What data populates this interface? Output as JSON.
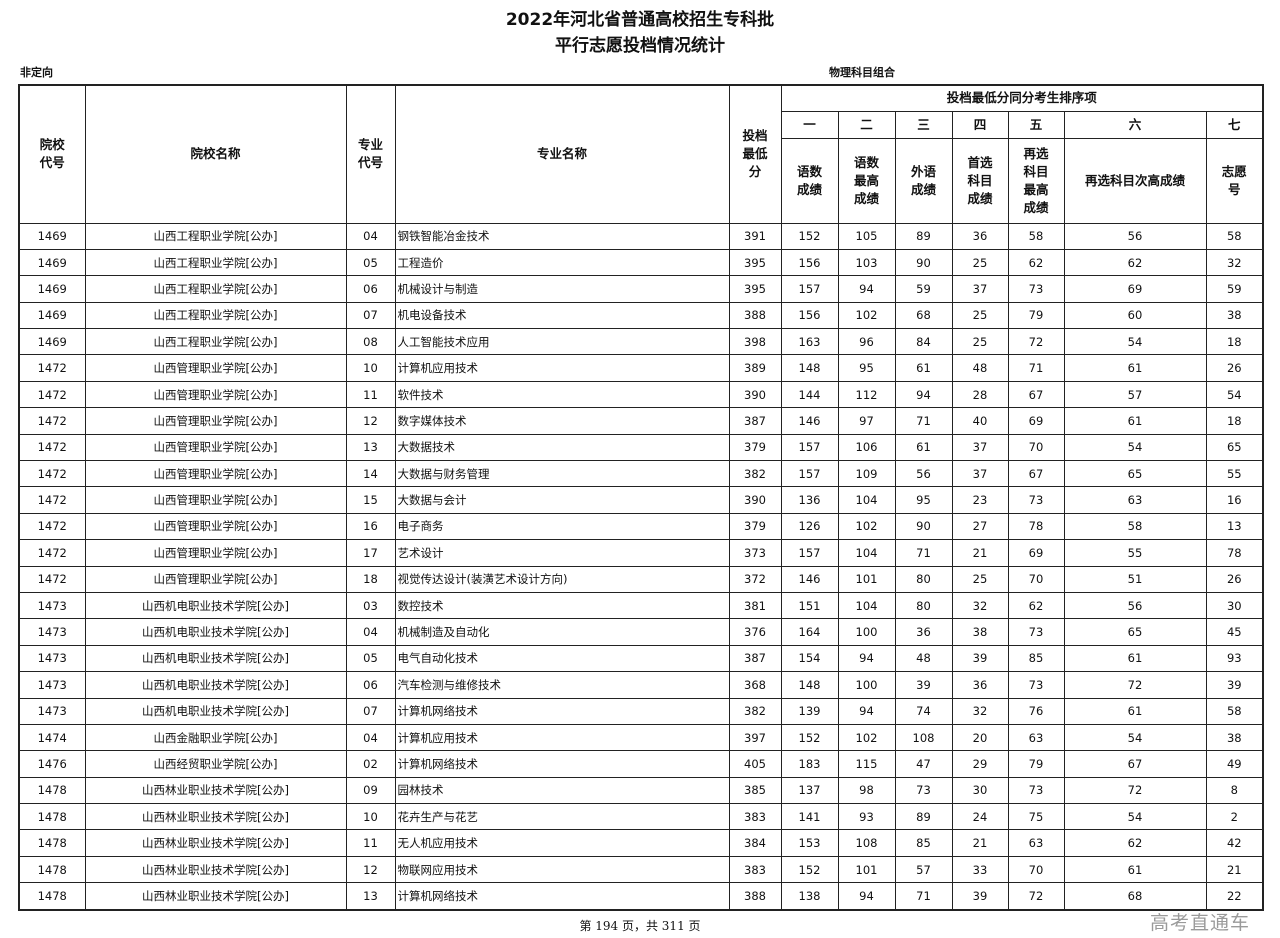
{
  "title_line1": "2022年河北省普通高校招生专科批",
  "title_line2": "平行志愿投档情况统计",
  "category": "非定向",
  "subject_group": "物理科目组合",
  "headers": {
    "school_code": "院校代号",
    "school_name": "院校名称",
    "major_code": "专业代号",
    "major_name": "专业名称",
    "min_score": "投档最低分",
    "tiebreak": "投档最低分同分考生排序项",
    "orders": [
      "一",
      "二",
      "三",
      "四",
      "五",
      "六",
      "七"
    ],
    "items": [
      "语数成绩",
      "语数最高成绩",
      "外语成绩",
      "首选科目成绩",
      "再选科目最高成绩",
      "再选科目次高成绩",
      "志愿号"
    ]
  },
  "rows": [
    [
      "1469",
      "山西工程职业学院[公办]",
      "04",
      "钢铁智能冶金技术",
      "391",
      "152",
      "105",
      "89",
      "36",
      "58",
      "56",
      "58"
    ],
    [
      "1469",
      "山西工程职业学院[公办]",
      "05",
      "工程造价",
      "395",
      "156",
      "103",
      "90",
      "25",
      "62",
      "62",
      "32"
    ],
    [
      "1469",
      "山西工程职业学院[公办]",
      "06",
      "机械设计与制造",
      "395",
      "157",
      "94",
      "59",
      "37",
      "73",
      "69",
      "59"
    ],
    [
      "1469",
      "山西工程职业学院[公办]",
      "07",
      "机电设备技术",
      "388",
      "156",
      "102",
      "68",
      "25",
      "79",
      "60",
      "38"
    ],
    [
      "1469",
      "山西工程职业学院[公办]",
      "08",
      "人工智能技术应用",
      "398",
      "163",
      "96",
      "84",
      "25",
      "72",
      "54",
      "18"
    ],
    [
      "1472",
      "山西管理职业学院[公办]",
      "10",
      "计算机应用技术",
      "389",
      "148",
      "95",
      "61",
      "48",
      "71",
      "61",
      "26"
    ],
    [
      "1472",
      "山西管理职业学院[公办]",
      "11",
      "软件技术",
      "390",
      "144",
      "112",
      "94",
      "28",
      "67",
      "57",
      "54"
    ],
    [
      "1472",
      "山西管理职业学院[公办]",
      "12",
      "数字媒体技术",
      "387",
      "146",
      "97",
      "71",
      "40",
      "69",
      "61",
      "18"
    ],
    [
      "1472",
      "山西管理职业学院[公办]",
      "13",
      "大数据技术",
      "379",
      "157",
      "106",
      "61",
      "37",
      "70",
      "54",
      "65"
    ],
    [
      "1472",
      "山西管理职业学院[公办]",
      "14",
      "大数据与财务管理",
      "382",
      "157",
      "109",
      "56",
      "37",
      "67",
      "65",
      "55"
    ],
    [
      "1472",
      "山西管理职业学院[公办]",
      "15",
      "大数据与会计",
      "390",
      "136",
      "104",
      "95",
      "23",
      "73",
      "63",
      "16"
    ],
    [
      "1472",
      "山西管理职业学院[公办]",
      "16",
      "电子商务",
      "379",
      "126",
      "102",
      "90",
      "27",
      "78",
      "58",
      "13"
    ],
    [
      "1472",
      "山西管理职业学院[公办]",
      "17",
      "艺术设计",
      "373",
      "157",
      "104",
      "71",
      "21",
      "69",
      "55",
      "78"
    ],
    [
      "1472",
      "山西管理职业学院[公办]",
      "18",
      "视觉传达设计(装潢艺术设计方向)",
      "372",
      "146",
      "101",
      "80",
      "25",
      "70",
      "51",
      "26"
    ],
    [
      "1473",
      "山西机电职业技术学院[公办]",
      "03",
      "数控技术",
      "381",
      "151",
      "104",
      "80",
      "32",
      "62",
      "56",
      "30"
    ],
    [
      "1473",
      "山西机电职业技术学院[公办]",
      "04",
      "机械制造及自动化",
      "376",
      "164",
      "100",
      "36",
      "38",
      "73",
      "65",
      "45"
    ],
    [
      "1473",
      "山西机电职业技术学院[公办]",
      "05",
      "电气自动化技术",
      "387",
      "154",
      "94",
      "48",
      "39",
      "85",
      "61",
      "93"
    ],
    [
      "1473",
      "山西机电职业技术学院[公办]",
      "06",
      "汽车检测与维修技术",
      "368",
      "148",
      "100",
      "39",
      "36",
      "73",
      "72",
      "39"
    ],
    [
      "1473",
      "山西机电职业技术学院[公办]",
      "07",
      "计算机网络技术",
      "382",
      "139",
      "94",
      "74",
      "32",
      "76",
      "61",
      "58"
    ],
    [
      "1474",
      "山西金融职业学院[公办]",
      "04",
      "计算机应用技术",
      "397",
      "152",
      "102",
      "108",
      "20",
      "63",
      "54",
      "38"
    ],
    [
      "1476",
      "山西经贸职业学院[公办]",
      "02",
      "计算机网络技术",
      "405",
      "183",
      "115",
      "47",
      "29",
      "79",
      "67",
      "49"
    ],
    [
      "1478",
      "山西林业职业技术学院[公办]",
      "09",
      "园林技术",
      "385",
      "137",
      "98",
      "73",
      "30",
      "73",
      "72",
      "8"
    ],
    [
      "1478",
      "山西林业职业技术学院[公办]",
      "10",
      "花卉生产与花艺",
      "383",
      "141",
      "93",
      "89",
      "24",
      "75",
      "54",
      "2"
    ],
    [
      "1478",
      "山西林业职业技术学院[公办]",
      "11",
      "无人机应用技术",
      "384",
      "153",
      "108",
      "85",
      "21",
      "63",
      "62",
      "42"
    ],
    [
      "1478",
      "山西林业职业技术学院[公办]",
      "12",
      "物联网应用技术",
      "383",
      "152",
      "101",
      "57",
      "33",
      "70",
      "61",
      "21"
    ],
    [
      "1478",
      "山西林业职业技术学院[公办]",
      "13",
      "计算机网络技术",
      "388",
      "138",
      "94",
      "71",
      "39",
      "72",
      "68",
      "22"
    ]
  ],
  "footer": "第 194 页，共 311 页",
  "watermark": "高考直通车"
}
